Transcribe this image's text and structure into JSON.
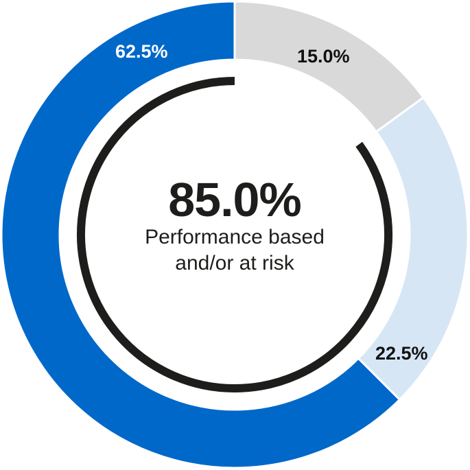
{
  "chart_data": {
    "type": "pie",
    "subtype": "donut",
    "categories": [
      "Blue segment",
      "Light blue segment",
      "Grey segment"
    ],
    "values": [
      62.5,
      22.5,
      15.0
    ],
    "labels": [
      "62.5%",
      "22.5%",
      "15.0%"
    ],
    "colors": [
      "#0068c9",
      "#d6e6f5",
      "#d9d9d9"
    ],
    "start_angle_deg": 0,
    "direction": "clockwise",
    "order_from_top": [
      "15.0%",
      "22.5%",
      "62.5%"
    ],
    "center_value": "85.0%",
    "center_caption": "Performance based and/or at risk",
    "highlight_arc": {
      "value": 85.0,
      "color": "#1d1d1b",
      "covers": [
        "62.5%",
        "22.5%"
      ]
    },
    "title": "",
    "xlabel": "",
    "ylabel": "",
    "legend": "none"
  },
  "center": {
    "value": "85.0%",
    "line1": "Performance based",
    "line2": "and/or at risk"
  },
  "labels": {
    "blue": "62.5%",
    "grey": "15.0%",
    "lightblue": "22.5%"
  }
}
